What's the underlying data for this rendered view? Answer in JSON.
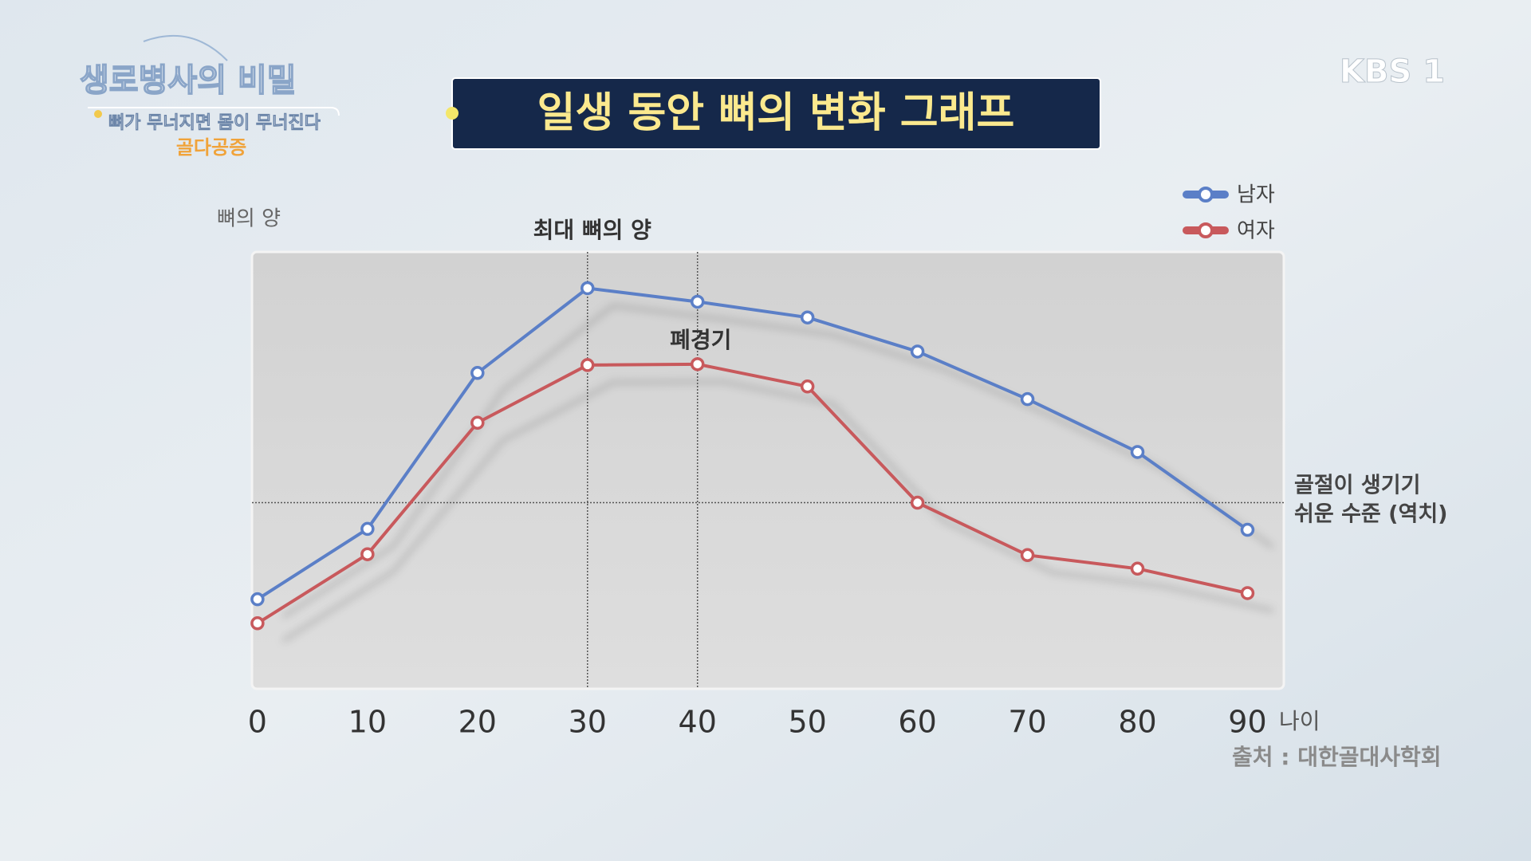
{
  "broadcast": {
    "program": "생로병사의 비밀",
    "episode_subtitle": "뼈가 무너지면 몸이 무너진다",
    "episode_title": "골다공증",
    "channel": "KBS 1"
  },
  "chart_data": {
    "type": "line",
    "title": "일생 동안 뼈의 변화 그래프",
    "y_label": "뼈의 양",
    "x_label": "나이",
    "source": "출처 : 대한골대사학회",
    "x": [
      0,
      10,
      20,
      30,
      40,
      50,
      60,
      70,
      80,
      90
    ],
    "series": [
      {
        "name": "남자",
        "color": "#5b7fc7",
        "values": [
          20.5,
          36.6,
          72.3,
          91.7,
          88.6,
          85.0,
          77.2,
          66.3,
          54.2,
          36.4
        ]
      },
      {
        "name": "여자",
        "color": "#c8595c",
        "values": [
          15.0,
          30.8,
          60.9,
          74.1,
          74.3,
          69.2,
          42.6,
          30.6,
          27.5,
          21.9
        ]
      }
    ],
    "xlim": [
      -0.5,
      93.3
    ],
    "xticks": [
      0,
      10,
      20,
      30,
      40,
      50,
      60,
      70,
      80,
      90
    ],
    "ylim": [
      0,
      100
    ],
    "threshold": {
      "value": 42.6,
      "label": [
        "골절이 생기기",
        "쉬운 수준 (역치)"
      ]
    },
    "annotations": [
      {
        "text": "최대 뼈의 양",
        "x": 30
      },
      {
        "text": "폐경기",
        "x": 40
      }
    ],
    "legend": "top-right"
  }
}
